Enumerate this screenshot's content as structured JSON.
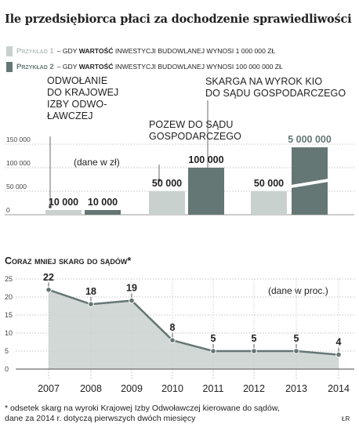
{
  "title": "Ile przedsiębiorca płaci za dochodzenie sprawiedliwości",
  "legend": [
    {
      "name": "Przykład 1",
      "pre": "– gdy ",
      "bold": "wartość",
      "rest": " inwestycji budowlanej wynosi 1 000 000 zł",
      "color": "#c9d1ce"
    },
    {
      "name": "Przykład 2",
      "pre": "– gdy ",
      "bold": "wartość",
      "rest": " inwestycji budowlanej wynosi 100 000 000 zł",
      "color": "#657774"
    }
  ],
  "chart_data": [
    {
      "type": "bar",
      "unit_note": "(dane w zł)",
      "categories": [
        "ODWOŁANIE\nDO KRAJOWEJ\nIZBY ODWO-\nŁAWCZEJ",
        "POZEW DO SĄDU\nGOSPODARCZEGO",
        "SKARGA NA WYROK KIO\nDO SĄDU GOSPODARCZEGO"
      ],
      "series": [
        {
          "name": "Przykład 1",
          "values": [
            10000,
            50000,
            50000
          ],
          "labels": [
            "10 000",
            "50 000",
            "50 000"
          ]
        },
        {
          "name": "Przykład 2",
          "values": [
            10000,
            100000,
            5000000
          ],
          "labels": [
            "10 000",
            "100 000",
            "5 000 000"
          ]
        }
      ],
      "yticks": [
        "0",
        "50 000",
        "100 000",
        "150 000"
      ],
      "ylim": [
        0,
        150000
      ],
      "axis_break": true
    },
    {
      "type": "area",
      "title": "Coraz mniej skarg do sądów*",
      "unit_note": "(dane w proc.)",
      "x": [
        "2007",
        "2008",
        "2009",
        "2010",
        "2011",
        "2012",
        "2013",
        "2014"
      ],
      "values": [
        22,
        18,
        19,
        8,
        5,
        5,
        5,
        4
      ],
      "yticks": [
        "0",
        "5",
        "10",
        "15",
        "20",
        "25"
      ],
      "ylim": [
        0,
        25
      ]
    }
  ],
  "footnote": "* odsetek skarg na wyroki Krajowej Izby Odwoławczej kierowane do sądów,\ndane za 2014 r. dotyczą pierwszych dwóch miesięcy",
  "initials": "ŁR"
}
